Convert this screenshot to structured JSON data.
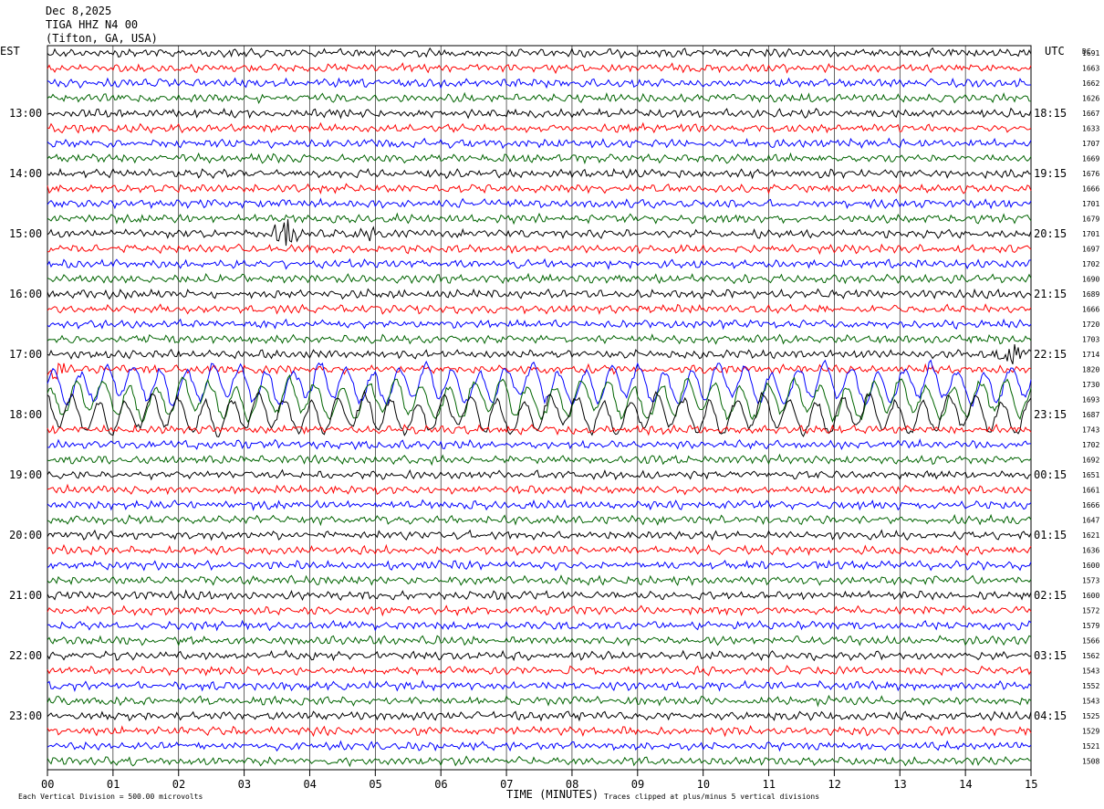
{
  "header": {
    "date": "Dec 8,2025",
    "station": "TIGA HHZ N4 00",
    "location": "(Tifton, GA, USA)"
  },
  "left_axis_title": "EST",
  "right_axis_title": "UTC",
  "dc_title": "DC",
  "footer": {
    "x_axis_title": "TIME (MINUTES)",
    "scale_note": "Each Vertical Division =  500.00 microvolts",
    "clip_note": "Traces clipped at plus/minus 5 vertical divisions"
  },
  "colors": {
    "trace_cycle": [
      "#000000",
      "#ff0000",
      "#0000ff",
      "#006400"
    ],
    "grid": "#000000"
  },
  "chart_data": {
    "type": "line",
    "description_free": true,
    "xlim": [
      0,
      15
    ],
    "x_ticks": [
      "00",
      "01",
      "02",
      "03",
      "04",
      "05",
      "06",
      "07",
      "08",
      "09",
      "10",
      "11",
      "12",
      "13",
      "14",
      "15"
    ],
    "est_labels": [
      {
        "row": 4,
        "label": "13:00"
      },
      {
        "row": 8,
        "label": "14:00"
      },
      {
        "row": 12,
        "label": "15:00"
      },
      {
        "row": 16,
        "label": "16:00"
      },
      {
        "row": 20,
        "label": "17:00"
      },
      {
        "row": 24,
        "label": "18:00"
      },
      {
        "row": 28,
        "label": "19:00"
      },
      {
        "row": 32,
        "label": "20:00"
      },
      {
        "row": 36,
        "label": "21:00"
      },
      {
        "row": 40,
        "label": "22:00"
      },
      {
        "row": 44,
        "label": "23:00"
      }
    ],
    "utc_labels": [
      {
        "row": 4,
        "label": "18:15"
      },
      {
        "row": 8,
        "label": "19:15"
      },
      {
        "row": 12,
        "label": "20:15"
      },
      {
        "row": 16,
        "label": "21:15"
      },
      {
        "row": 20,
        "label": "22:15"
      },
      {
        "row": 24,
        "label": "23:15"
      },
      {
        "row": 28,
        "label": "00:15"
      },
      {
        "row": 32,
        "label": "01:15"
      },
      {
        "row": 36,
        "label": "02:15"
      },
      {
        "row": 40,
        "label": "03:15"
      },
      {
        "row": 44,
        "label": "04:15"
      }
    ],
    "dc_offsets": [
      "1691",
      "1663",
      "1662",
      "1626",
      "1667",
      "1633",
      "1707",
      "1669",
      "1676",
      "1666",
      "1701",
      "1679",
      "1701",
      "1697",
      "1702",
      "1690",
      "1689",
      "1666",
      "1720",
      "1703",
      "1714",
      "1820",
      "1730",
      "1693",
      "1687",
      "1743",
      "1702",
      "1692",
      "1651",
      "1661",
      "1666",
      "1647",
      "1621",
      "1636",
      "1600",
      "1573",
      "1600",
      "1572",
      "1579",
      "1566",
      "1562",
      "1543",
      "1552",
      "1543",
      "1525",
      "1529",
      "1521",
      "1508"
    ],
    "rows": 48,
    "events": [
      {
        "row": 12,
        "minute": 3.65,
        "kind": "burst"
      },
      {
        "row": 12,
        "minute": 4.85,
        "kind": "small"
      },
      {
        "row": 20,
        "minute": 14.7,
        "kind": "burst"
      },
      {
        "row": 21,
        "minute": 0.05,
        "kind": "burst"
      },
      {
        "row": 22,
        "minute": 0.0,
        "kind": "longperiod"
      },
      {
        "row": 23,
        "minute": 0.0,
        "kind": "longperiod"
      },
      {
        "row": 24,
        "minute": 0.0,
        "kind": "longperiod"
      }
    ]
  }
}
